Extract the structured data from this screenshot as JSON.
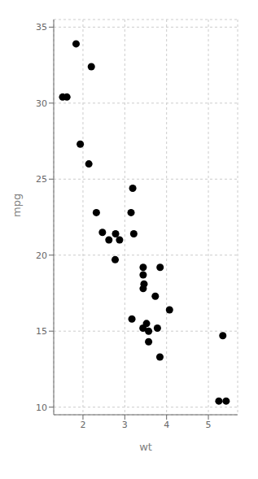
{
  "chart_data": {
    "type": "scatter",
    "x": [
      2.62,
      2.875,
      2.32,
      3.215,
      3.44,
      3.46,
      3.57,
      3.19,
      3.15,
      3.44,
      3.44,
      4.07,
      3.73,
      3.78,
      5.25,
      5.424,
      5.345,
      2.2,
      1.615,
      1.835,
      2.465,
      3.52,
      3.435,
      3.84,
      3.845,
      1.935,
      2.14,
      1.513,
      3.17,
      2.77,
      3.57,
      2.78
    ],
    "values": [
      21.0,
      21.0,
      22.8,
      21.4,
      18.7,
      18.1,
      14.3,
      24.4,
      22.8,
      19.2,
      17.8,
      16.4,
      17.3,
      15.2,
      10.4,
      10.4,
      14.7,
      32.4,
      30.4,
      33.9,
      21.5,
      15.5,
      15.2,
      13.3,
      19.2,
      27.3,
      26.0,
      30.4,
      15.8,
      19.7,
      15.0,
      21.4
    ],
    "xlabel": "wt",
    "ylabel": "mpg",
    "xlim": [
      1.3,
      5.7
    ],
    "ylim": [
      9.5,
      35.5
    ],
    "xticks": [
      2,
      3,
      4,
      5
    ],
    "yticks": [
      10,
      15,
      20,
      25,
      30,
      35
    ],
    "color": "#000000",
    "grid": true
  }
}
